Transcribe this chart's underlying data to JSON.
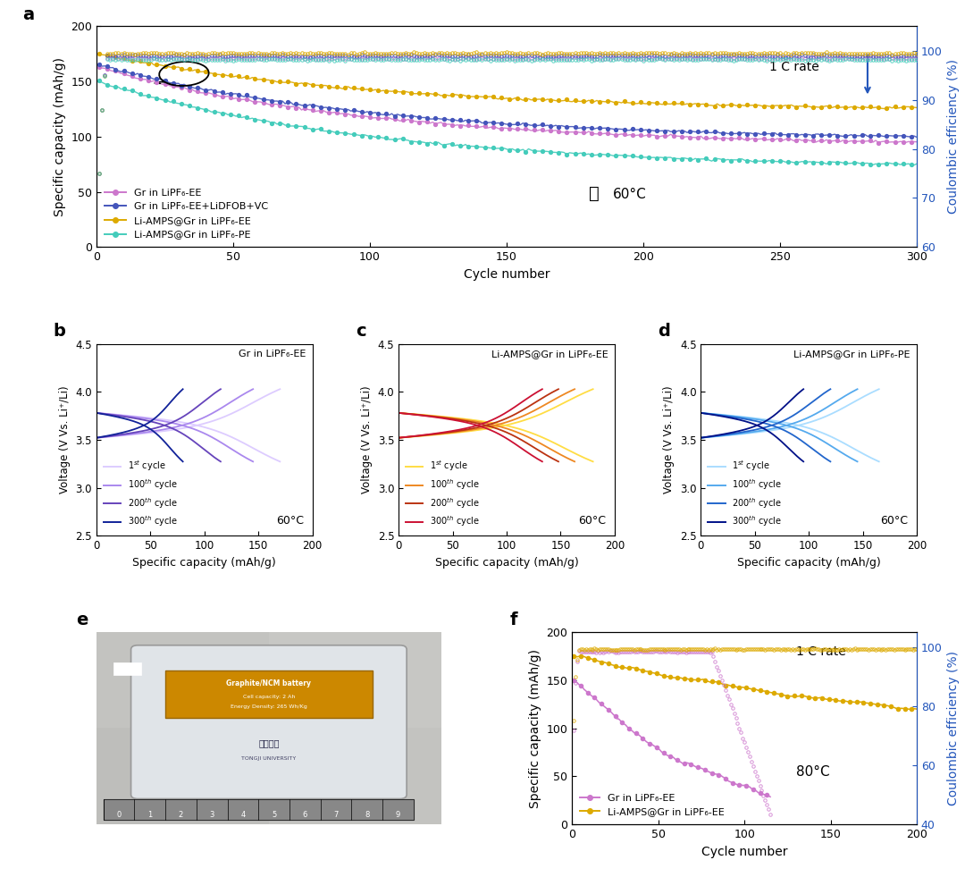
{
  "fig_width": 10.8,
  "fig_height": 9.81,
  "panel_a": {
    "xlabel": "Cycle number",
    "ylabel_left": "Specific capacity (mAh/g)",
    "ylabel_right": "Coulombic efficiency (%)",
    "xlim": [
      0,
      300
    ],
    "ylim_left": [
      0,
      200
    ],
    "ylim_right": [
      60,
      105
    ],
    "xticks": [
      0,
      50,
      100,
      150,
      200,
      250,
      300
    ],
    "yticks_left": [
      0,
      50,
      100,
      150,
      200
    ],
    "yticks_right": [
      60,
      70,
      80,
      90,
      100
    ],
    "series": [
      {
        "label": "Gr in LiPF₆-EE",
        "color": "#CC77CC",
        "ds": 163,
        "de": 95,
        "ce": 98.5
      },
      {
        "label": "Gr in LiPF₆-EE+LiDFOB+VC",
        "color": "#4455BB",
        "ds": 165,
        "de": 100,
        "ce": 99.0
      },
      {
        "label": "Li-AMPS@Gr in LiPF₆-EE",
        "color": "#DDAA00",
        "ds": 175,
        "de": 126,
        "ce": 99.5
      },
      {
        "label": "Li-AMPS@Gr in LiPF₆-PE",
        "color": "#44CCBB",
        "ds": 150,
        "de": 75,
        "ce": 98.2
      }
    ],
    "annotation_text": "1 C rate",
    "temp_text": "60°C"
  },
  "panel_b": {
    "title": "Gr in LiPF₆-EE",
    "xlabel": "Specific capacity (mAh/g)",
    "ylabel": "Voltage (V Vs. Li⁺/Li)",
    "xlim": [
      0,
      200
    ],
    "ylim": [
      2.5,
      4.5
    ],
    "xticks": [
      0,
      50,
      100,
      150,
      200
    ],
    "yticks": [
      2.5,
      3.0,
      3.5,
      4.0,
      4.5
    ],
    "temp_text": "60°C",
    "cycle_caps": [
      170,
      145,
      115,
      80
    ],
    "colors": [
      "#DDCCFF",
      "#AA88EE",
      "#6644BB",
      "#112299"
    ]
  },
  "panel_c": {
    "title": "Li-AMPS@Gr in LiPF₆-EE",
    "xlabel": "Specific capacity (mAh/g)",
    "ylabel": "Voltage (V Vs. Li⁺/Li)",
    "xlim": [
      0,
      200
    ],
    "ylim": [
      2.5,
      4.5
    ],
    "xticks": [
      0,
      50,
      100,
      150,
      200
    ],
    "yticks": [
      2.5,
      3.0,
      3.5,
      4.0,
      4.5
    ],
    "temp_text": "60°C",
    "cycle_caps": [
      180,
      163,
      148,
      133
    ],
    "colors": [
      "#FFDD44",
      "#EE8822",
      "#BB3311",
      "#CC1133"
    ]
  },
  "panel_d": {
    "title": "Li-AMPS@Gr in LiPF₆-PE",
    "xlabel": "Specific capacity (mAh/g)",
    "ylabel": "Voltage (V Vs. Li⁺/Li)",
    "xlim": [
      0,
      200
    ],
    "ylim": [
      2.5,
      4.5
    ],
    "xticks": [
      0,
      50,
      100,
      150,
      200
    ],
    "yticks": [
      2.5,
      3.0,
      3.5,
      4.0,
      4.5
    ],
    "temp_text": "60°C",
    "cycle_caps": [
      165,
      145,
      120,
      95
    ],
    "colors": [
      "#AADDFF",
      "#55AAEE",
      "#2266CC",
      "#001188"
    ]
  },
  "panel_f": {
    "xlabel": "Cycle number",
    "ylabel_left": "Specific capacity (mAh/g)",
    "ylabel_right": "Coulombic efficiency (%)",
    "xlim": [
      0,
      200
    ],
    "ylim_left": [
      0,
      200
    ],
    "ylim_right": [
      40,
      105
    ],
    "xticks": [
      0,
      50,
      100,
      150,
      200
    ],
    "yticks_left": [
      0,
      50,
      100,
      150,
      200
    ],
    "yticks_right": [
      40,
      60,
      80,
      100
    ],
    "annotation_text": "1 C rate",
    "temp_text": "80°C",
    "series": [
      {
        "label": "Gr in LiPF₆-EE",
        "color": "#CC77CC"
      },
      {
        "label": "Li-AMPS@Gr in LiPF₆-EE",
        "color": "#DDAA00"
      }
    ]
  }
}
